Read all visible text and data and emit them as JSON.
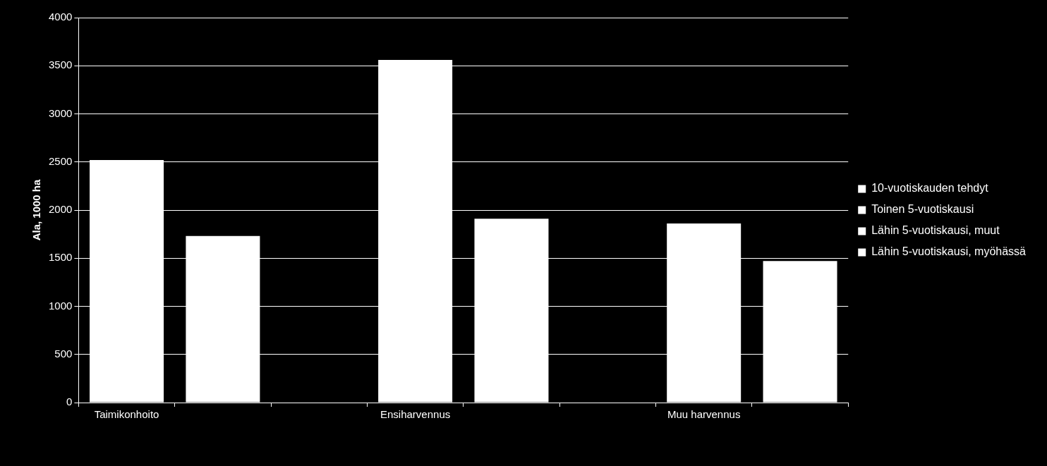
{
  "chart_data": {
    "type": "bar",
    "stacked": true,
    "ylabel": "Ala, 1000 ha",
    "categories": [
      "Taimikonhoito",
      null,
      null,
      "Ensiharvennus",
      null,
      null,
      "Muu harvennus",
      null
    ],
    "series": [
      {
        "name": "10-vuotiskauden tehdyt",
        "color": "#ffffff",
        "values": [
          2520,
          null,
          null,
          3560,
          null,
          null,
          1860,
          null
        ]
      },
      {
        "name": "Toinen 5-vuotiskausi",
        "color": "#ffffff",
        "values": [
          null,
          1730,
          null,
          null,
          1910,
          null,
          null,
          1470
        ]
      },
      {
        "name": "Lähin 5-vuotiskausi, muut",
        "color": "#ffffff",
        "values": [
          null,
          null,
          null,
          null,
          null,
          null,
          null,
          null
        ]
      },
      {
        "name": "Lähin 5-vuotiskausi, myöhässä",
        "color": "#ffffff",
        "values": [
          null,
          null,
          null,
          null,
          null,
          null,
          null,
          null
        ]
      }
    ],
    "ylim": [
      0,
      4000
    ],
    "yticks": [
      0,
      500,
      1000,
      1500,
      2000,
      2500,
      3000,
      3500,
      4000
    ],
    "grid": "y",
    "legend": "right"
  }
}
